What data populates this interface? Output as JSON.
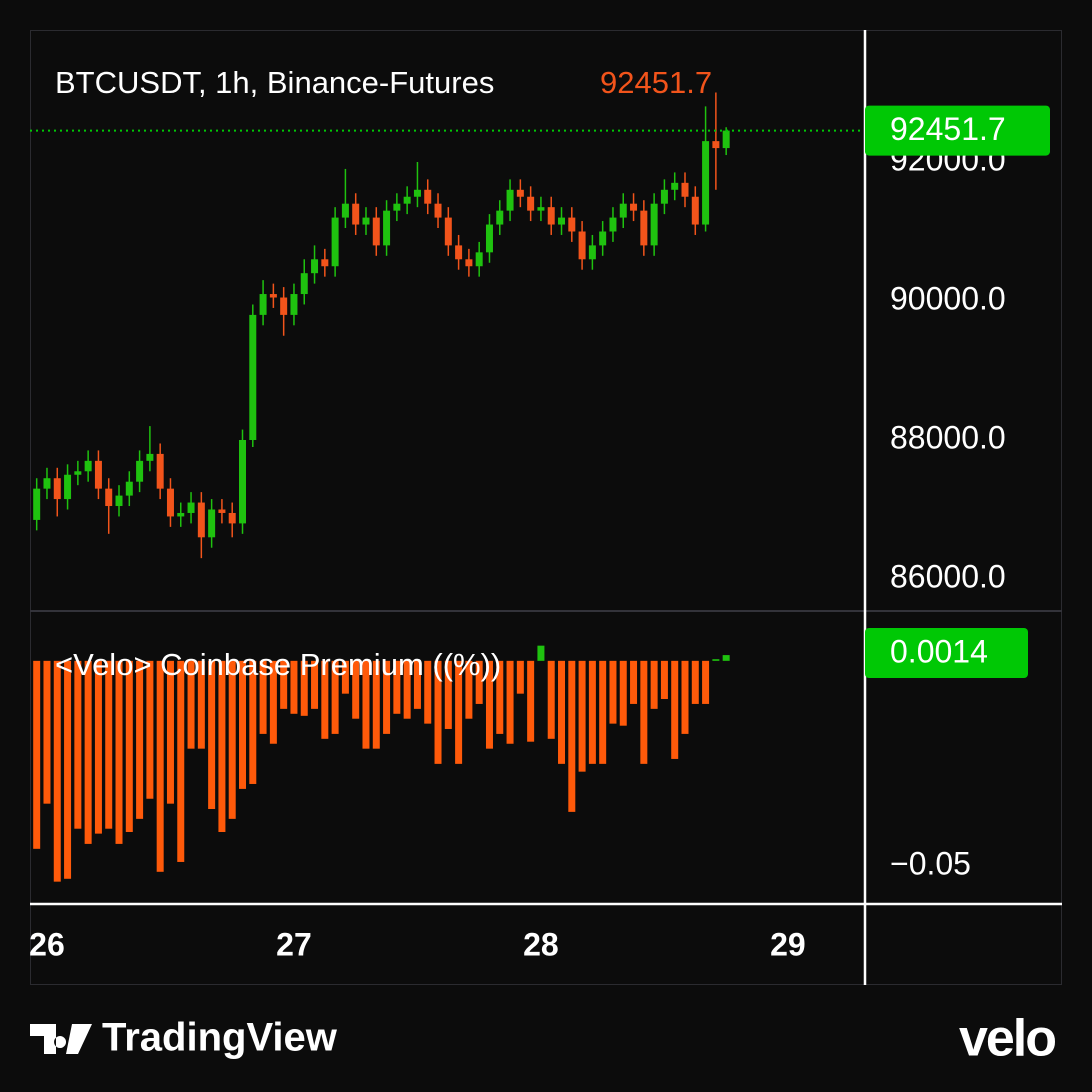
{
  "chart_data": [
    {
      "type": "candlestick",
      "title": "BTCUSDT, 1h, Binance-Futures",
      "x": [
        -1,
        0,
        1,
        2,
        3,
        4,
        5,
        6,
        7,
        8,
        9,
        10,
        11,
        12,
        13,
        14,
        15,
        16,
        17,
        18,
        19,
        20,
        21,
        22,
        23,
        24,
        25,
        26,
        27,
        28,
        29,
        30,
        31,
        32,
        33,
        34,
        35,
        36,
        37,
        38,
        39,
        40,
        41,
        42,
        43,
        44,
        45,
        46,
        47,
        48,
        49,
        50,
        51,
        52,
        53,
        54,
        55,
        56,
        57,
        58,
        59,
        60,
        61,
        62,
        63,
        64,
        65,
        66
      ],
      "open": [
        86850,
        87300,
        87450,
        87150,
        87500,
        87550,
        87700,
        87300,
        87050,
        87200,
        87400,
        87700,
        87800,
        87300,
        86900,
        86950,
        87100,
        86600,
        87000,
        86950,
        86800,
        88000,
        89800,
        90100,
        90050,
        89800,
        90100,
        90400,
        90600,
        90500,
        91200,
        91400,
        91100,
        91200,
        90800,
        91300,
        91400,
        91500,
        91600,
        91400,
        91200,
        90800,
        90600,
        90500,
        90700,
        91100,
        91300,
        91600,
        91500,
        91300,
        91350,
        91100,
        91200,
        91000,
        90600,
        90800,
        91000,
        91200,
        91400,
        91300,
        90800,
        91400,
        91600,
        91700,
        91500,
        91100,
        92300,
        92200
      ],
      "high": [
        87450,
        87600,
        87600,
        87650,
        87700,
        87850,
        87850,
        87450,
        87350,
        87550,
        87850,
        88200,
        87950,
        87450,
        87100,
        87250,
        87250,
        87150,
        87150,
        87100,
        88150,
        89950,
        90300,
        90250,
        90200,
        90250,
        90600,
        90800,
        90750,
        91350,
        91900,
        91550,
        91350,
        91350,
        91450,
        91550,
        91650,
        92000,
        91750,
        91550,
        91350,
        90950,
        90750,
        90850,
        91250,
        91450,
        91750,
        91750,
        91650,
        91500,
        91500,
        91350,
        91350,
        91150,
        90950,
        91150,
        91350,
        91550,
        91550,
        91450,
        91550,
        91750,
        91850,
        91850,
        91650,
        92800,
        93000,
        92500
      ],
      "low": [
        86700,
        87150,
        86900,
        87000,
        87350,
        87400,
        87150,
        86650,
        86900,
        87050,
        87250,
        87550,
        87150,
        86750,
        86750,
        86800,
        86300,
        86450,
        86800,
        86600,
        86650,
        87900,
        89650,
        89900,
        89500,
        89650,
        89950,
        90250,
        90350,
        90350,
        91050,
        90950,
        90950,
        90650,
        90650,
        91150,
        91250,
        91350,
        91250,
        91050,
        90650,
        90450,
        90350,
        90350,
        90550,
        90950,
        91150,
        91350,
        91150,
        91150,
        90950,
        90950,
        90850,
        90450,
        90450,
        90650,
        90850,
        91050,
        91150,
        90650,
        90650,
        91250,
        91450,
        91350,
        90950,
        91000,
        91600,
        92100
      ],
      "close": [
        87300,
        87450,
        87150,
        87500,
        87550,
        87700,
        87300,
        87050,
        87200,
        87400,
        87700,
        87800,
        87300,
        86900,
        86950,
        87100,
        86600,
        87000,
        86950,
        86800,
        88000,
        89800,
        90100,
        90050,
        89800,
        90100,
        90400,
        90600,
        90500,
        91200,
        91400,
        91100,
        91200,
        90800,
        91300,
        91400,
        91500,
        91600,
        91400,
        91200,
        90800,
        90600,
        90500,
        90700,
        91100,
        91300,
        91600,
        91500,
        91300,
        91350,
        91100,
        91200,
        91000,
        90600,
        90800,
        91000,
        91200,
        91400,
        91300,
        90800,
        91400,
        91600,
        91700,
        91500,
        91100,
        92300,
        92200,
        92451.7
      ],
      "up_color": "#1fc20f",
      "down_color": "#f2541b",
      "last_label_color": "#00c805",
      "xlim": [
        -1.65,
        79.2
      ],
      "ylim": [
        85554,
        93899
      ],
      "yticks": [
        {
          "value": 86000,
          "label": "86000.0"
        },
        {
          "value": 88000,
          "label": "88000.0"
        },
        {
          "value": 90000,
          "label": "90000.0"
        },
        {
          "value": 92000,
          "label": "92000.0"
        }
      ],
      "grid": false
    },
    {
      "type": "bar",
      "title": "<Velo> Coinbase Premium ((%))",
      "x": [
        -1,
        0,
        1,
        2,
        3,
        4,
        5,
        6,
        7,
        8,
        9,
        10,
        11,
        12,
        13,
        14,
        15,
        16,
        17,
        18,
        19,
        20,
        21,
        22,
        23,
        24,
        25,
        26,
        27,
        28,
        29,
        30,
        31,
        32,
        33,
        34,
        35,
        36,
        37,
        38,
        39,
        40,
        41,
        42,
        43,
        44,
        45,
        46,
        47,
        48,
        49,
        50,
        51,
        52,
        53,
        54,
        55,
        56,
        57,
        58,
        59,
        60,
        61,
        62,
        63,
        64,
        65,
        66
      ],
      "values": [
        -0.0458,
        -0.0348,
        -0.0538,
        -0.0531,
        -0.0409,
        -0.0446,
        -0.0421,
        -0.0409,
        -0.0446,
        -0.0417,
        -0.0385,
        -0.0336,
        -0.0514,
        -0.0348,
        -0.049,
        -0.0214,
        -0.0214,
        -0.0361,
        -0.0417,
        -0.0385,
        -0.0312,
        -0.03,
        -0.0178,
        -0.0202,
        -0.0117,
        -0.0129,
        -0.0134,
        -0.0117,
        -0.019,
        -0.0178,
        -0.008,
        -0.0141,
        -0.0214,
        -0.0214,
        -0.0178,
        -0.0129,
        -0.0141,
        -0.0117,
        -0.0153,
        -0.0251,
        -0.0166,
        -0.0251,
        -0.0141,
        -0.0105,
        -0.0214,
        -0.0178,
        -0.0202,
        -0.008,
        -0.0197,
        0.0037,
        -0.019,
        -0.0251,
        -0.0368,
        -0.027,
        -0.0251,
        -0.0251,
        -0.0153,
        -0.0158,
        -0.0105,
        -0.0251,
        -0.0117,
        -0.0093,
        -0.0239,
        -0.0178,
        -0.0105,
        -0.0105,
        0.0004,
        0.0014
      ],
      "positive_color": "#1fc20f",
      "negative_color": "#ff5a0a",
      "last_label_color": "#00c805",
      "xlim": [
        -1.65,
        79.2
      ],
      "ylim": [
        -0.059,
        0.0119
      ],
      "yticks": [
        {
          "value": -0.05,
          "label": "−0.05"
        }
      ],
      "xticks": [
        {
          "value": 0,
          "label": "26"
        },
        {
          "value": 24,
          "label": "27"
        },
        {
          "value": 48,
          "label": "28"
        },
        {
          "value": 72,
          "label": "29"
        }
      ]
    }
  ],
  "branding": {
    "left": "TradingView",
    "right": "velo"
  }
}
